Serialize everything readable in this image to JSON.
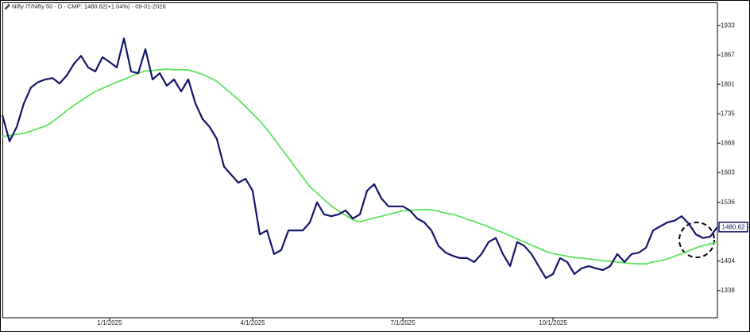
{
  "chart_data": {
    "type": "line",
    "title": "Nifty IT/Nifty 50 - D - CMP: 1480.62(+1.04%) - 09-01-2026",
    "categories": [
      null,
      null,
      null,
      null,
      null,
      null,
      null,
      null,
      null,
      null,
      null,
      null,
      null,
      null,
      null,
      "1/1/2025",
      null,
      null,
      null,
      null,
      null,
      null,
      null,
      null,
      null,
      null,
      null,
      null,
      null,
      null,
      null,
      null,
      null,
      null,
      null,
      "4/1/2025",
      null,
      null,
      null,
      null,
      null,
      null,
      null,
      null,
      null,
      null,
      null,
      null,
      null,
      null,
      null,
      null,
      null,
      null,
      null,
      null,
      "7/1/2025",
      null,
      null,
      null,
      null,
      null,
      null,
      null,
      null,
      null,
      null,
      null,
      null,
      null,
      null,
      null,
      null,
      null,
      null,
      null,
      null,
      "10/1/2025",
      null,
      null,
      null,
      null,
      null,
      null,
      null,
      null,
      null,
      null,
      null,
      null,
      null,
      null,
      null,
      null,
      null,
      null,
      null,
      null,
      null,
      null,
      null
    ],
    "series": [
      {
        "color": "#14146b",
        "width": 2.2,
        "values": [
          1732,
          1673,
          1705,
          1758,
          1794,
          1806,
          1812,
          1815,
          1803,
          1821,
          1847,
          1865,
          1839,
          1830,
          1862,
          1851,
          1839,
          1904,
          1830,
          1826,
          1880,
          1812,
          1826,
          1798,
          1812,
          1785,
          1812,
          1758,
          1723,
          1705,
          1678,
          1616,
          1598,
          1580,
          1589,
          1562,
          1464,
          1473,
          1420,
          1429,
          1473,
          1473,
          1473,
          1491,
          1536,
          1509,
          1505,
          1509,
          1518,
          1500,
          1509,
          1562,
          1577,
          1545,
          1527,
          1527,
          1527,
          1518,
          1500,
          1491,
          1473,
          1438,
          1423,
          1416,
          1411,
          1411,
          1402,
          1420,
          1447,
          1456,
          1420,
          1393,
          1447,
          1438,
          1420,
          1393,
          1366,
          1375,
          1411,
          1402,
          1375,
          1388,
          1393,
          1388,
          1384,
          1393,
          1420,
          1402,
          1420,
          1423,
          1434,
          1473,
          1482,
          1491,
          1495,
          1505,
          1488,
          1464,
          1456,
          1459,
          1480.62
        ]
      },
      {
        "color": "#5ee35e",
        "width": 1.8,
        "values": [
          1684,
          1686,
          1689,
          1691,
          1696,
          1702,
          1707,
          1717,
          1729,
          1742,
          1754,
          1764,
          1775,
          1785,
          1792,
          1799,
          1806,
          1812,
          1819,
          1826,
          1831,
          1832,
          1834,
          1835,
          1834,
          1834,
          1833,
          1829,
          1823,
          1816,
          1808,
          1794,
          1781,
          1767,
          1751,
          1735,
          1719,
          1700,
          1679,
          1657,
          1636,
          1614,
          1593,
          1571,
          1557,
          1542,
          1528,
          1517,
          1507,
          1497,
          1492,
          1497,
          1501,
          1505,
          1509,
          1513,
          1517,
          1518,
          1519,
          1520,
          1519,
          1516,
          1512,
          1509,
          1504,
          1498,
          1493,
          1487,
          1481,
          1474,
          1468,
          1461,
          1454,
          1447,
          1440,
          1433,
          1426,
          1421,
          1418,
          1415,
          1412,
          1411,
          1409,
          1407,
          1405,
          1404,
          1402,
          1400,
          1399,
          1398,
          1398,
          1402,
          1405,
          1409,
          1415,
          1421,
          1427,
          1434,
          1439,
          1443,
          1447
        ]
      }
    ],
    "ylim": [
      1277,
      1985
    ],
    "yticks": [
      1338,
      1404,
      1536,
      1603,
      1669,
      1735,
      1801,
      1867,
      1933
    ],
    "grid": false
  }
}
